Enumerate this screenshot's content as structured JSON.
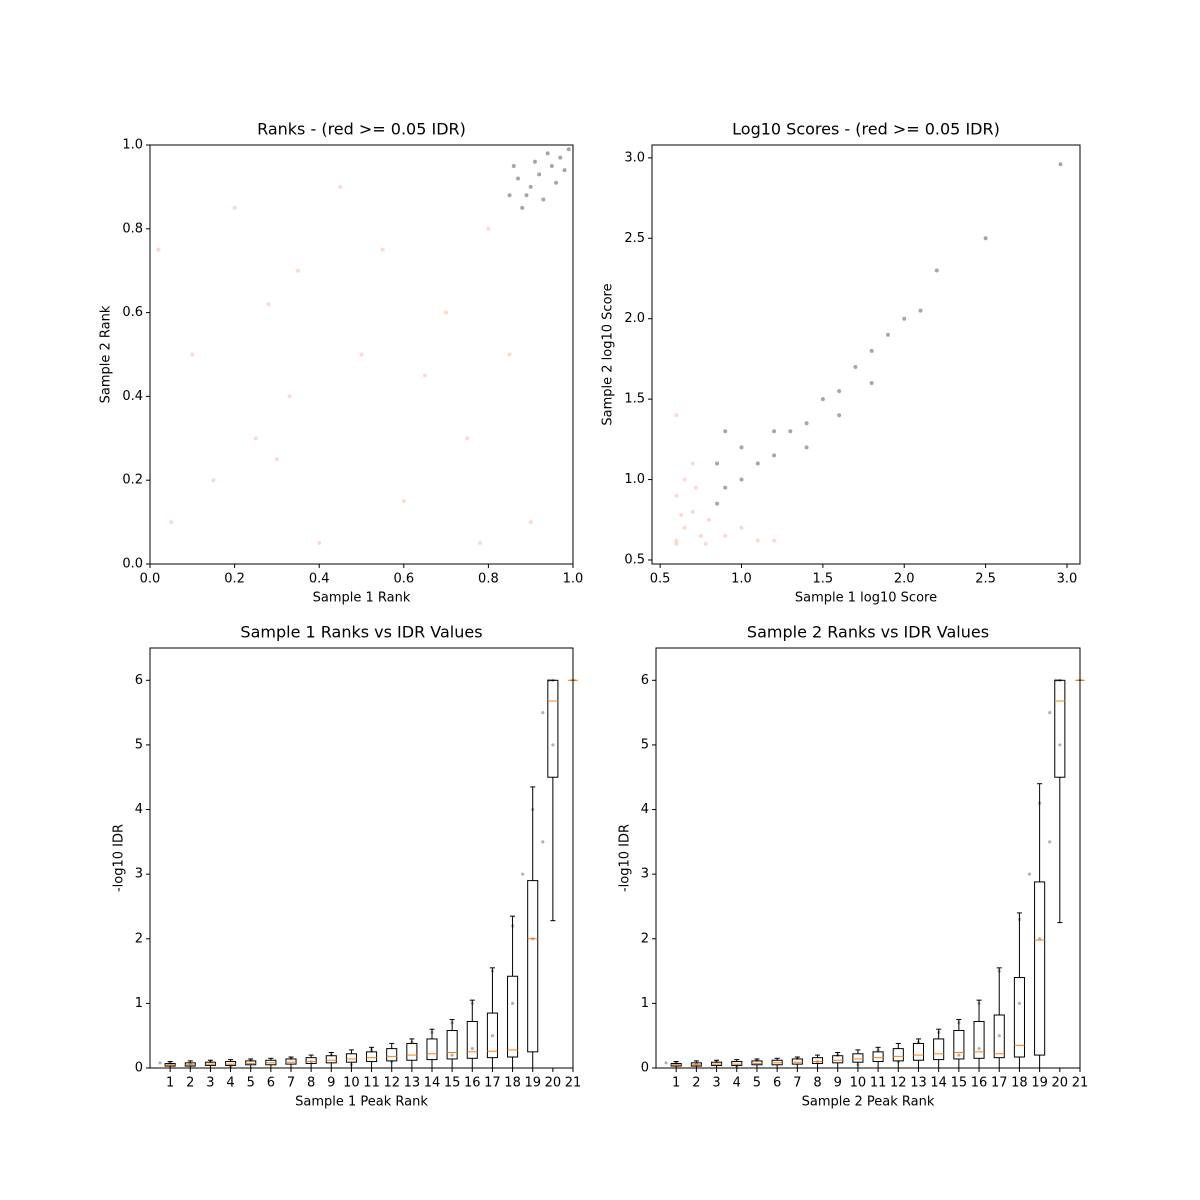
{
  "chart_data": [
    {
      "type": "scatter",
      "title": "Ranks - (red >= 0.05 IDR)",
      "xlabel": "Sample 1 Rank",
      "ylabel": "Sample 2 Rank",
      "xlim": [
        0,
        1
      ],
      "ylim": [
        0,
        1
      ],
      "xticks": [
        {
          "value": 0,
          "label": "0.0"
        },
        0.2,
        0.4,
        0.6,
        0.8,
        {
          "value": 1,
          "label": "1.0"
        }
      ],
      "yticks": [
        {
          "value": 0,
          "label": "0.0"
        },
        0.2,
        0.4,
        0.6,
        0.8,
        {
          "value": 1,
          "label": "1.0"
        }
      ],
      "series": [
        {
          "color": "#fa9473",
          "x": [
            0.05,
            0.1,
            0.25,
            0.3,
            0.35,
            0.5,
            0.45,
            0.6,
            0.7,
            0.75,
            0.8,
            0.2,
            0.55,
            0.65,
            0.15,
            0.9,
            0.4,
            0.02,
            0.28,
            0.78,
            0.85,
            0.33
          ],
          "values": [
            0.1,
            0.5,
            0.3,
            0.25,
            0.7,
            0.5,
            0.9,
            0.15,
            0.6,
            0.3,
            0.8,
            0.85,
            0.75,
            0.45,
            0.2,
            0.1,
            0.05,
            0.75,
            0.62,
            0.05,
            0.5,
            0.4
          ]
        },
        {
          "color": "#000000",
          "x": [
            0.85,
            0.88,
            0.9,
            0.92,
            0.95,
            0.97,
            0.99,
            0.87,
            0.93,
            0.96,
            0.91,
            0.94,
            0.98,
            0.86,
            0.89
          ],
          "values": [
            0.88,
            0.85,
            0.9,
            0.93,
            0.95,
            0.97,
            0.99,
            0.92,
            0.87,
            0.91,
            0.96,
            0.98,
            0.94,
            0.95,
            0.88
          ]
        }
      ]
    },
    {
      "type": "scatter",
      "title": "Log10 Scores - (red >= 0.05 IDR)",
      "xlabel": "Sample 1 log10 Score",
      "ylabel": "Sample 2 log10 Score",
      "xlim": [
        0.45,
        3.08
      ],
      "ylim": [
        0.475,
        3.08
      ],
      "xticks": [
        0.5,
        {
          "value": 1,
          "label": "1.0"
        },
        1.5,
        {
          "value": 2,
          "label": "2.0"
        },
        2.5,
        {
          "value": 3,
          "label": "3.0"
        }
      ],
      "yticks": [
        0.5,
        {
          "value": 1,
          "label": "1.0"
        },
        1.5,
        {
          "value": 2,
          "label": "2.0"
        },
        2.5,
        {
          "value": 3,
          "label": "3.0"
        }
      ],
      "series": [
        {
          "color": "#fa9473",
          "x": [
            0.6,
            0.65,
            0.7,
            0.75,
            0.8,
            0.6,
            0.65,
            0.7,
            0.6,
            0.9,
            1.0,
            1.1,
            0.6,
            0.72,
            0.78,
            1.2,
            0.63
          ],
          "values": [
            0.6,
            0.7,
            0.8,
            0.65,
            0.75,
            0.9,
            1.0,
            1.1,
            1.4,
            0.65,
            0.7,
            0.62,
            0.62,
            0.95,
            0.6,
            0.62,
            0.78
          ]
        },
        {
          "color": "#000000",
          "x": [
            0.85,
            0.9,
            1.0,
            1.1,
            1.2,
            1.3,
            1.4,
            1.5,
            1.6,
            1.7,
            1.8,
            1.9,
            2.0,
            2.1,
            2.2,
            2.5,
            2.96,
            1.2,
            1.4,
            1.0,
            0.9,
            1.6,
            1.8,
            0.85
          ],
          "values": [
            0.85,
            0.95,
            1.0,
            1.1,
            1.15,
            1.3,
            1.35,
            1.5,
            1.55,
            1.7,
            1.8,
            1.9,
            2.0,
            2.05,
            2.3,
            2.5,
            2.96,
            1.3,
            1.2,
            1.2,
            1.3,
            1.4,
            1.6,
            1.1
          ]
        }
      ]
    },
    {
      "type": "box",
      "title": "Sample 1 Ranks vs IDR Values",
      "xlabel": "Sample 1 Peak Rank",
      "ylabel": "-log10 IDR",
      "xlim": [
        0,
        21
      ],
      "ylim": [
        0,
        6.5
      ],
      "xticks": [
        1,
        2,
        3,
        4,
        5,
        6,
        7,
        8,
        9,
        10,
        11,
        12,
        13,
        14,
        15,
        16,
        17,
        18,
        19,
        20,
        21
      ],
      "yticks": [
        0,
        1,
        2,
        3,
        4,
        5,
        6
      ],
      "points": {
        "color": "#000000",
        "x": [
          1,
          3,
          5,
          7,
          9,
          11,
          13,
          14,
          15,
          16,
          17,
          18,
          18.5,
          19,
          19.5,
          19.8,
          20,
          12,
          16,
          17,
          18,
          19,
          19.5,
          15,
          10,
          4,
          0.5,
          2,
          8,
          20
        ],
        "values": [
          0.08,
          0.1,
          0.12,
          0.15,
          0.2,
          0.28,
          0.4,
          0.55,
          0.7,
          1.0,
          1.5,
          2.2,
          3,
          4,
          5.5,
          6,
          6,
          0.1,
          0.3,
          0.5,
          1,
          2,
          3.5,
          0.2,
          0.05,
          0.03,
          0.08,
          0.06,
          0.1,
          5
        ]
      },
      "boxes": [
        {
          "whislo": 0,
          "q1": 0.03,
          "median": 0.05,
          "q3": 0.07,
          "whishi": 0.1
        },
        {
          "whislo": 0,
          "q1": 0.03,
          "median": 0.05,
          "q3": 0.08,
          "whishi": 0.11
        },
        {
          "whislo": 0,
          "q1": 0.04,
          "median": 0.06,
          "q3": 0.09,
          "whishi": 0.12
        },
        {
          "whislo": 0,
          "q1": 0.04,
          "median": 0.06,
          "q3": 0.1,
          "whishi": 0.13
        },
        {
          "whislo": 0,
          "q1": 0.05,
          "median": 0.07,
          "q3": 0.11,
          "whishi": 0.14
        },
        {
          "whislo": 0,
          "q1": 0.05,
          "median": 0.08,
          "q3": 0.12,
          "whishi": 0.15
        },
        {
          "whislo": 0,
          "q1": 0.06,
          "median": 0.09,
          "q3": 0.14,
          "whishi": 0.17
        },
        {
          "whislo": 0,
          "q1": 0.07,
          "median": 0.1,
          "q3": 0.16,
          "whishi": 0.2
        },
        {
          "whislo": 0,
          "q1": 0.08,
          "median": 0.12,
          "q3": 0.19,
          "whishi": 0.24
        },
        {
          "whislo": 0,
          "q1": 0.09,
          "median": 0.14,
          "q3": 0.22,
          "whishi": 0.28
        },
        {
          "whislo": 0,
          "q1": 0.1,
          "median": 0.16,
          "q3": 0.25,
          "whishi": 0.32
        },
        {
          "whislo": 0,
          "q1": 0.11,
          "median": 0.18,
          "q3": 0.3,
          "whishi": 0.38
        },
        {
          "whislo": 0,
          "q1": 0.12,
          "median": 0.2,
          "q3": 0.38,
          "whishi": 0.45
        },
        {
          "whislo": 0,
          "q1": 0.13,
          "median": 0.22,
          "q3": 0.45,
          "whishi": 0.6
        },
        {
          "whislo": 0,
          "q1": 0.14,
          "median": 0.24,
          "q3": 0.58,
          "whishi": 0.75
        },
        {
          "whislo": 0,
          "q1": 0.15,
          "median": 0.25,
          "q3": 0.72,
          "whishi": 1.05
        },
        {
          "whislo": 0,
          "q1": 0.16,
          "median": 0.26,
          "q3": 0.85,
          "whishi": 1.55
        },
        {
          "whislo": 0,
          "q1": 0.17,
          "median": 0.28,
          "q3": 1.42,
          "whishi": 2.35
        },
        {
          "whislo": 0,
          "q1": 0.25,
          "median": 2.0,
          "q3": 2.9,
          "whishi": 4.35
        },
        {
          "whislo": 2.28,
          "q1": 4.5,
          "median": 5.68,
          "q3": 6,
          "whishi": 6
        },
        {
          "whislo": 6,
          "q1": 6,
          "median": 6,
          "q3": 6,
          "whishi": 6
        }
      ]
    },
    {
      "type": "box",
      "title": "Sample 2 Ranks vs IDR Values",
      "xlabel": "Sample 2 Peak Rank",
      "ylabel": "-log10 IDR",
      "xlim": [
        0,
        21
      ],
      "ylim": [
        0,
        6.5
      ],
      "xticks": [
        1,
        2,
        3,
        4,
        5,
        6,
        7,
        8,
        9,
        10,
        11,
        12,
        13,
        14,
        15,
        16,
        17,
        18,
        19,
        20,
        21
      ],
      "yticks": [
        0,
        1,
        2,
        3,
        4,
        5,
        6
      ],
      "points": {
        "color": "#000000",
        "x": [
          1,
          3,
          5,
          7,
          9,
          11,
          13,
          14,
          15,
          16,
          17,
          18,
          18.5,
          19,
          19.5,
          19.8,
          20,
          12,
          16,
          17,
          18,
          19,
          19.5,
          15,
          10,
          4,
          0.5,
          2,
          8,
          20
        ],
        "values": [
          0.08,
          0.1,
          0.12,
          0.15,
          0.2,
          0.28,
          0.4,
          0.55,
          0.7,
          1.0,
          1.5,
          2.3,
          3,
          4.1,
          5.5,
          6,
          6,
          0.1,
          0.3,
          0.5,
          1,
          2,
          3.5,
          0.2,
          0.05,
          0.03,
          0.08,
          0.06,
          0.1,
          5
        ]
      },
      "boxes": [
        {
          "whislo": 0,
          "q1": 0.03,
          "median": 0.05,
          "q3": 0.07,
          "whishi": 0.1
        },
        {
          "whislo": 0,
          "q1": 0.03,
          "median": 0.05,
          "q3": 0.08,
          "whishi": 0.11
        },
        {
          "whislo": 0,
          "q1": 0.04,
          "median": 0.06,
          "q3": 0.09,
          "whishi": 0.12
        },
        {
          "whislo": 0,
          "q1": 0.04,
          "median": 0.06,
          "q3": 0.1,
          "whishi": 0.13
        },
        {
          "whislo": 0,
          "q1": 0.05,
          "median": 0.07,
          "q3": 0.11,
          "whishi": 0.14
        },
        {
          "whislo": 0,
          "q1": 0.05,
          "median": 0.08,
          "q3": 0.12,
          "whishi": 0.15
        },
        {
          "whislo": 0,
          "q1": 0.06,
          "median": 0.09,
          "q3": 0.14,
          "whishi": 0.17
        },
        {
          "whislo": 0,
          "q1": 0.07,
          "median": 0.1,
          "q3": 0.16,
          "whishi": 0.2
        },
        {
          "whislo": 0,
          "q1": 0.08,
          "median": 0.12,
          "q3": 0.19,
          "whishi": 0.24
        },
        {
          "whislo": 0,
          "q1": 0.09,
          "median": 0.14,
          "q3": 0.22,
          "whishi": 0.28
        },
        {
          "whislo": 0,
          "q1": 0.1,
          "median": 0.16,
          "q3": 0.25,
          "whishi": 0.32
        },
        {
          "whislo": 0,
          "q1": 0.11,
          "median": 0.18,
          "q3": 0.3,
          "whishi": 0.38
        },
        {
          "whislo": 0,
          "q1": 0.12,
          "median": 0.2,
          "q3": 0.38,
          "whishi": 0.45
        },
        {
          "whislo": 0,
          "q1": 0.13,
          "median": 0.22,
          "q3": 0.45,
          "whishi": 0.6
        },
        {
          "whislo": 0,
          "q1": 0.14,
          "median": 0.24,
          "q3": 0.58,
          "whishi": 0.75
        },
        {
          "whislo": 0,
          "q1": 0.15,
          "median": 0.25,
          "q3": 0.72,
          "whishi": 1.05
        },
        {
          "whislo": 0,
          "q1": 0.16,
          "median": 0.22,
          "q3": 0.82,
          "whishi": 1.55
        },
        {
          "whislo": 0,
          "q1": 0.17,
          "median": 0.35,
          "q3": 1.4,
          "whishi": 2.4
        },
        {
          "whislo": 0,
          "q1": 0.2,
          "median": 1.98,
          "q3": 2.88,
          "whishi": 4.4
        },
        {
          "whislo": 2.25,
          "q1": 4.5,
          "median": 5.68,
          "q3": 6,
          "whishi": 6
        },
        {
          "whislo": 6,
          "q1": 6,
          "median": 6,
          "q3": 6,
          "whishi": 6
        }
      ]
    }
  ]
}
